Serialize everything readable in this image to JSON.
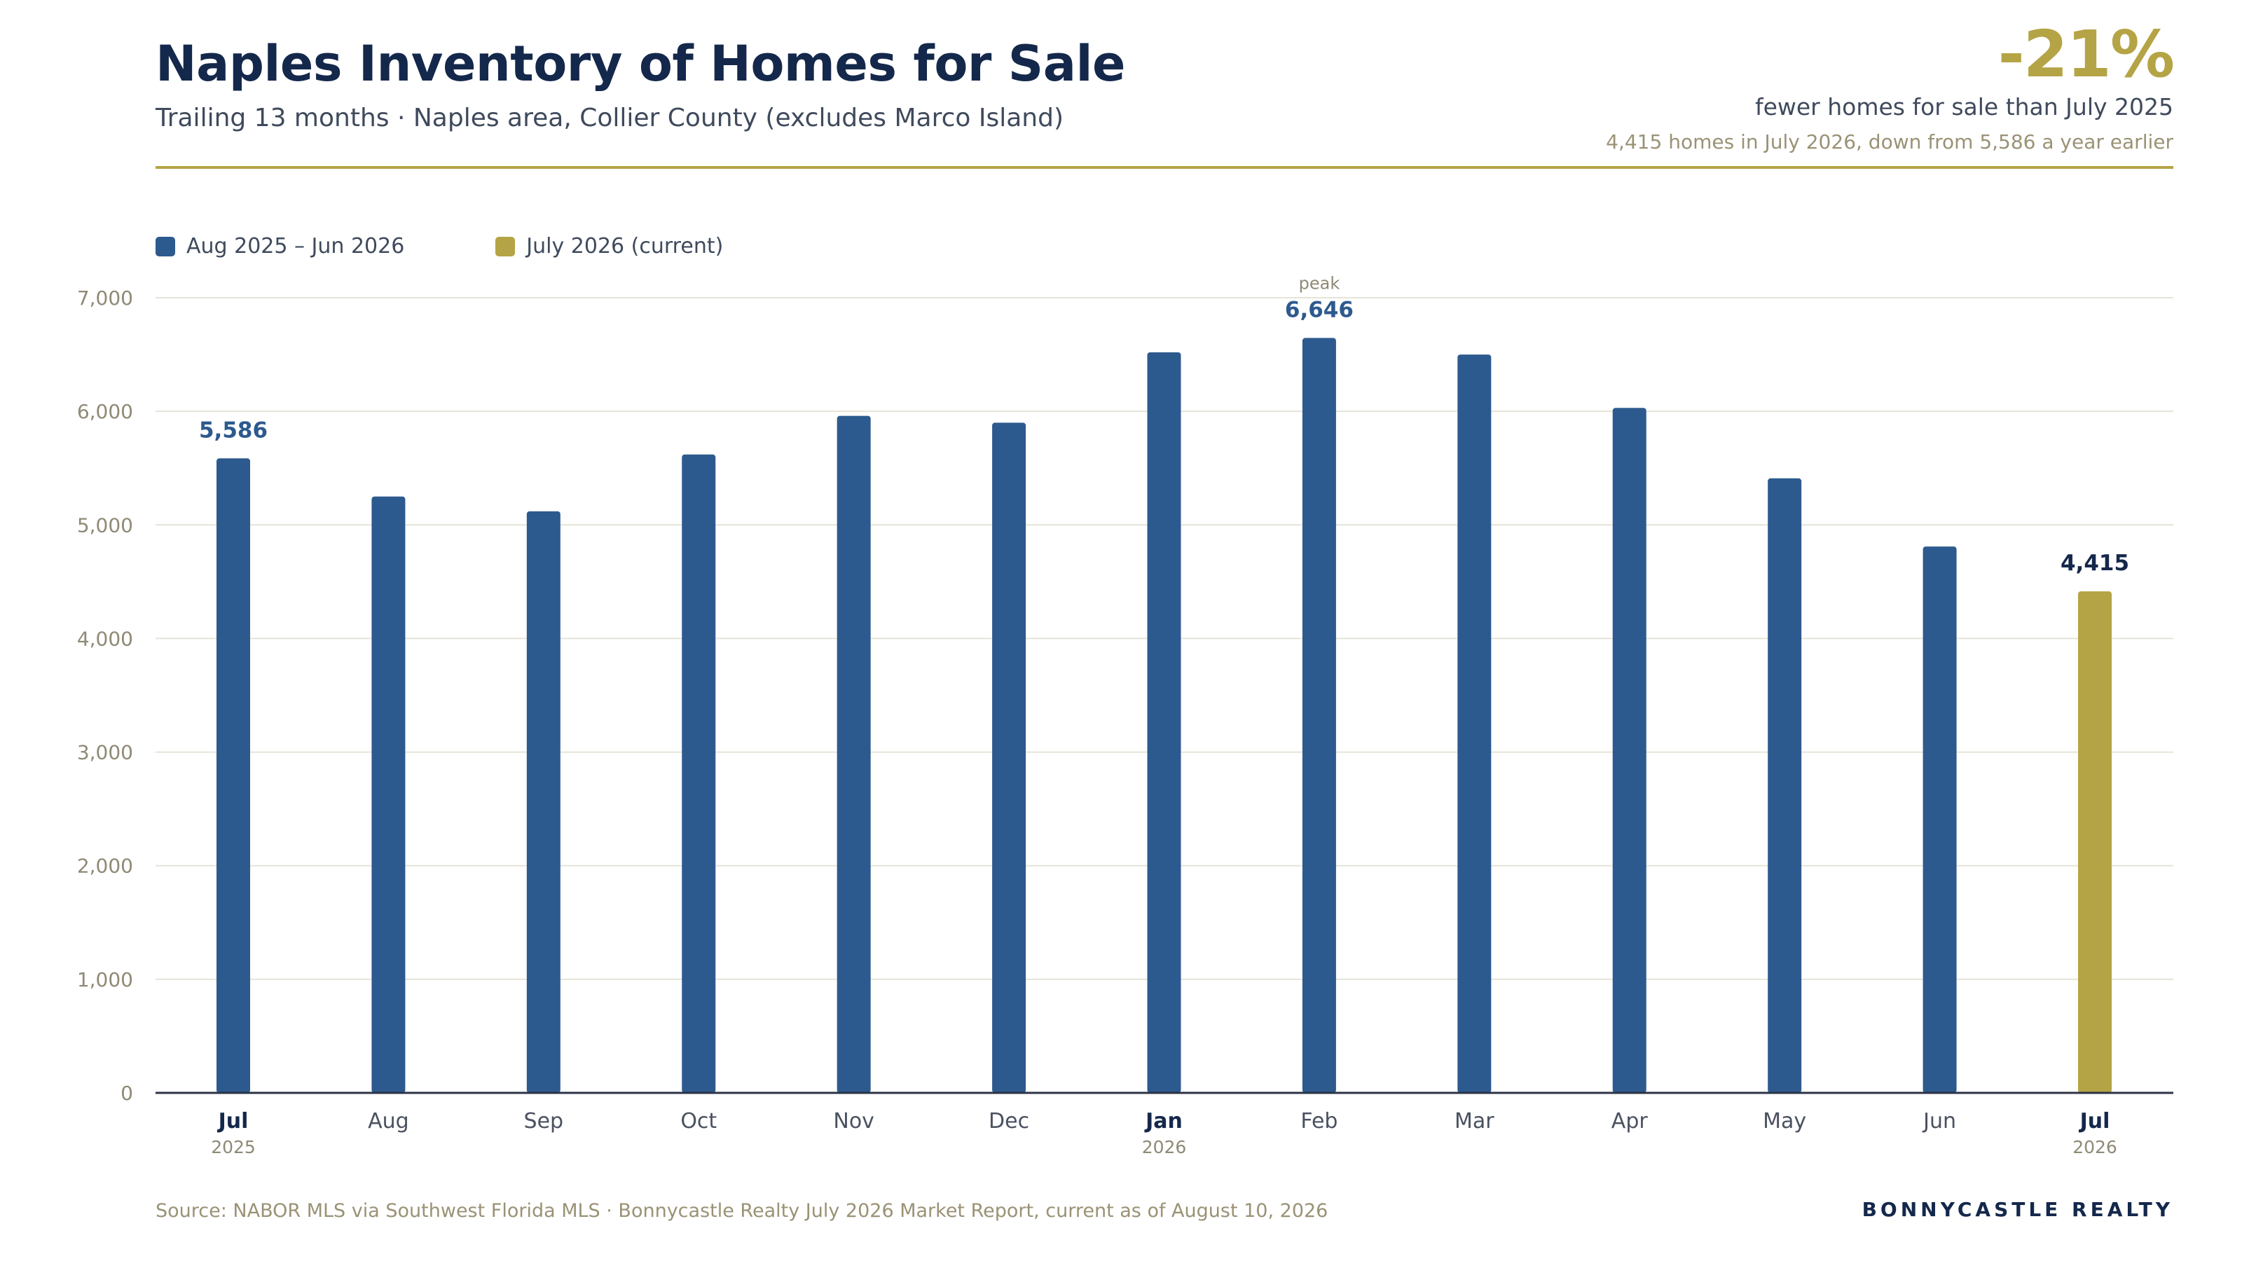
{
  "header": {
    "title": "Naples Inventory of Homes for Sale",
    "subtitle": "Trailing 13 months · Naples area, Collier County (excludes Marco Island)"
  },
  "kpi": {
    "value": "-21%",
    "caption": "fewer homes for sale than July 2025",
    "detail": "4,415 homes in July 2026, down from 5,586 a year earlier"
  },
  "legend": [
    {
      "label": "Aug 2025 – Jun 2026",
      "color": "#2d5a8e"
    },
    {
      "label": "July 2026 (current)",
      "color": "#b5a445"
    }
  ],
  "chart_data": {
    "type": "bar",
    "categories": [
      "Jul",
      "Aug",
      "Sep",
      "Oct",
      "Nov",
      "Dec",
      "Jan",
      "Feb",
      "Mar",
      "Apr",
      "May",
      "Jun",
      "Jul"
    ],
    "category_years": [
      "2025",
      "",
      "",
      "",
      "",
      "",
      "2026",
      "",
      "",
      "",
      "",
      "",
      "2026"
    ],
    "bold_categories": [
      0,
      6,
      12
    ],
    "values": [
      5586,
      5250,
      5120,
      5620,
      5960,
      5900,
      6520,
      6646,
      6500,
      6030,
      5410,
      4810,
      4415
    ],
    "colors": [
      "#2d5a8e",
      "#2d5a8e",
      "#2d5a8e",
      "#2d5a8e",
      "#2d5a8e",
      "#2d5a8e",
      "#2d5a8e",
      "#2d5a8e",
      "#2d5a8e",
      "#2d5a8e",
      "#2d5a8e",
      "#2d5a8e",
      "#b5a445"
    ],
    "data_labels": [
      {
        "index": 0,
        "text": "5,586",
        "color": "#2d5a8e"
      },
      {
        "index": 7,
        "text": "6,646",
        "color": "#2d5a8e",
        "note": "peak"
      },
      {
        "index": 12,
        "text": "4,415",
        "color": "#14284b"
      }
    ],
    "ylim": [
      0,
      7000
    ],
    "yticks": [
      0,
      1000,
      2000,
      3000,
      4000,
      5000,
      6000,
      7000
    ],
    "ytick_labels": [
      "0",
      "1,000",
      "2,000",
      "3,000",
      "4,000",
      "5,000",
      "6,000",
      "7,000"
    ],
    "grid": true,
    "legend_position": "top-left",
    "title": "Naples Inventory of Homes for Sale",
    "xlabel": "",
    "ylabel": ""
  },
  "footer": {
    "source": "Source: NABOR MLS via Southwest Florida MLS · Bonnycastle Realty July 2026 Market Report, current as of August 10, 2026",
    "brand": "BONNYCASTLE REALTY"
  }
}
